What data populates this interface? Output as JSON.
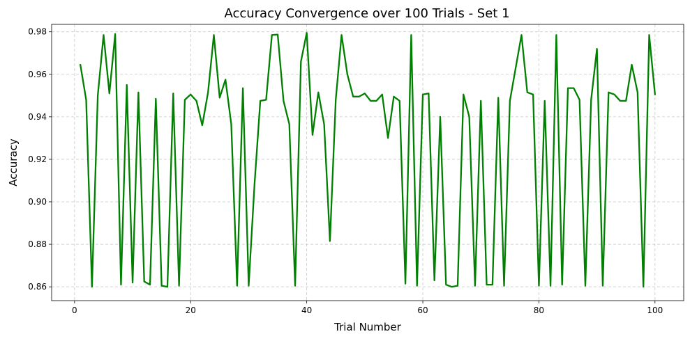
{
  "chart_data": {
    "type": "line",
    "title": "Accuracy Convergence over 100 Trials - Set 1",
    "xlabel": "Trial Number",
    "ylabel": "Accuracy",
    "xlim": [
      -3.95,
      104.95
    ],
    "ylim": [
      0.8535,
      0.9835
    ],
    "xticks": [
      0,
      20,
      40,
      60,
      80,
      100
    ],
    "yticks": [
      0.86,
      0.88,
      0.9,
      0.92,
      0.94,
      0.96,
      0.98
    ],
    "grid": true,
    "series": [
      {
        "color": "#008000",
        "x": [
          1,
          2,
          3,
          4,
          5,
          6,
          7,
          8,
          9,
          10,
          11,
          12,
          13,
          14,
          15,
          16,
          17,
          18,
          19,
          20,
          21,
          22,
          23,
          24,
          25,
          26,
          27,
          28,
          29,
          30,
          31,
          32,
          33,
          34,
          35,
          36,
          37,
          38,
          39,
          40,
          41,
          42,
          43,
          44,
          45,
          46,
          47,
          48,
          49,
          50,
          51,
          52,
          53,
          54,
          55,
          56,
          57,
          58,
          59,
          60,
          61,
          62,
          63,
          64,
          65,
          66,
          67,
          68,
          69,
          70,
          71,
          72,
          73,
          74,
          75,
          76,
          77,
          78,
          79,
          80,
          81,
          82,
          83,
          84,
          85,
          86,
          87,
          88,
          89,
          90,
          91,
          92,
          93,
          94,
          95,
          96,
          97,
          98,
          99,
          100
        ],
        "y": [
          0.9645,
          0.948,
          0.86,
          0.95,
          0.9785,
          0.951,
          0.979,
          0.861,
          0.955,
          0.862,
          0.9515,
          0.8625,
          0.861,
          0.9485,
          0.8605,
          0.86,
          0.951,
          0.8605,
          0.948,
          0.9505,
          0.9475,
          0.936,
          0.9515,
          0.9785,
          0.949,
          0.9575,
          0.9365,
          0.8605,
          0.9535,
          0.8605,
          0.908,
          0.9475,
          0.948,
          0.9785,
          0.9787,
          0.9475,
          0.9365,
          0.8605,
          0.966,
          0.9795,
          0.9315,
          0.9515,
          0.9365,
          0.8815,
          0.948,
          0.9785,
          0.96,
          0.9495,
          0.9495,
          0.951,
          0.9475,
          0.9475,
          0.9505,
          0.93,
          0.9495,
          0.9475,
          0.8615,
          0.9785,
          0.8605,
          0.9505,
          0.951,
          0.863,
          0.94,
          0.861,
          0.86,
          0.8605,
          0.9505,
          0.94,
          0.8605,
          0.9475,
          0.861,
          0.861,
          0.949,
          0.8605,
          0.9475,
          0.963,
          0.9785,
          0.9515,
          0.9505,
          0.8605,
          0.9475,
          0.8605,
          0.9785,
          0.861,
          0.9535,
          0.9535,
          0.948,
          0.8605,
          0.948,
          0.972,
          0.8605,
          0.9515,
          0.9505,
          0.9475,
          0.9475,
          0.9645,
          0.9515,
          0.86,
          0.9785,
          0.9505
        ]
      }
    ]
  }
}
